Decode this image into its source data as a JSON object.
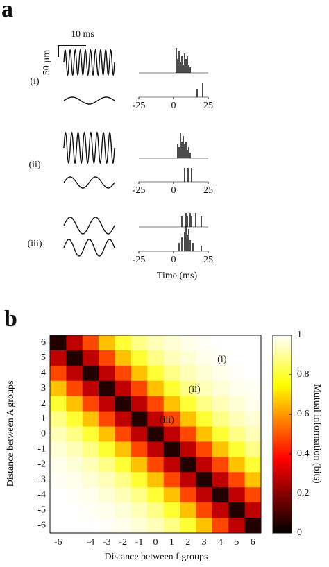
{
  "chart_data": [
    {
      "type": "spikes",
      "panel": "a",
      "time_scale": "10 ms",
      "amplitude_scale": "50 µm",
      "xlabel": "Time (ms)",
      "xlim": [
        -25,
        25
      ],
      "xticks": [
        -25,
        0,
        25
      ],
      "conditions": [
        {
          "label": "(i)",
          "top": {
            "times": [
              2,
              3,
              4,
              5,
              6,
              7,
              8,
              9,
              10,
              11,
              12
            ],
            "heights": [
              0.9,
              0.5,
              0.8,
              0.4,
              0.6,
              0.3,
              0.7,
              0.5,
              0.6,
              0.3,
              0.2
            ]
          },
          "bottom": {
            "times": [
              17,
              21
            ],
            "heights": [
              0.3,
              0.5
            ]
          }
        },
        {
          "label": "(ii)",
          "top": {
            "times": [
              3,
              4,
              5,
              6,
              7,
              8,
              9,
              10,
              11,
              12
            ],
            "heights": [
              0.5,
              0.4,
              0.9,
              0.6,
              0.8,
              0.5,
              0.6,
              0.3,
              0.4,
              0.2
            ]
          },
          "bottom": {
            "times": [
              8,
              10,
              11,
              13
            ],
            "heights": [
              0.5,
              0.5,
              0.5,
              0.5
            ]
          }
        },
        {
          "label": "(iii)",
          "top": {
            "times": [
              6,
              9,
              10,
              12,
              13,
              16,
              20
            ],
            "heights": [
              0.4,
              0.5,
              0.4,
              0.5,
              0.4,
              0.5,
              0.4
            ]
          },
          "bottom": {
            "times": [
              4,
              6,
              8,
              9,
              10,
              11,
              12,
              14,
              20
            ],
            "heights": [
              0.3,
              0.5,
              0.7,
              0.9,
              0.6,
              0.8,
              0.4,
              0.3,
              0.2
            ]
          }
        }
      ]
    },
    {
      "type": "heatmap",
      "panel": "b",
      "xlabel": "Distance between f groups",
      "ylabel": "Distance between A groups",
      "x_categories": [
        -6,
        null,
        -4,
        -3,
        -2,
        -1,
        0,
        1,
        2,
        3,
        4,
        5,
        6
      ],
      "y_categories": [
        6,
        5,
        4,
        3,
        2,
        1,
        0,
        -1,
        -2,
        -3,
        -4,
        -5,
        -6
      ],
      "annotations": [
        "(i)",
        "(ii)",
        "(iii)"
      ],
      "colorbar_label": "Mutual information (bits)",
      "clim": [
        0,
        1
      ],
      "cticks": [
        0,
        0.2,
        0.4,
        0.6,
        0.8,
        1
      ],
      "colormap": "hot",
      "values": [
        [
          0.05,
          0.28,
          0.48,
          0.66,
          0.8,
          0.88,
          0.93,
          0.96,
          0.98,
          0.99,
          1,
          1,
          1
        ],
        [
          0.28,
          0.05,
          0.28,
          0.48,
          0.66,
          0.8,
          0.88,
          0.93,
          0.96,
          0.98,
          0.99,
          1,
          1
        ],
        [
          0.48,
          0.28,
          0.05,
          0.28,
          0.48,
          0.66,
          0.8,
          0.88,
          0.93,
          0.96,
          0.98,
          0.99,
          1
        ],
        [
          0.66,
          0.48,
          0.28,
          0.05,
          0.28,
          0.48,
          0.66,
          0.8,
          0.88,
          0.93,
          0.96,
          0.98,
          0.99
        ],
        [
          0.8,
          0.66,
          0.48,
          0.28,
          0.05,
          0.28,
          0.48,
          0.66,
          0.8,
          0.88,
          0.93,
          0.96,
          0.98
        ],
        [
          0.88,
          0.8,
          0.66,
          0.48,
          0.28,
          0.05,
          0.28,
          0.48,
          0.66,
          0.8,
          0.88,
          0.93,
          0.96
        ],
        [
          0.93,
          0.88,
          0.8,
          0.66,
          0.48,
          0.28,
          0.05,
          0.28,
          0.48,
          0.66,
          0.8,
          0.88,
          0.93
        ],
        [
          0.96,
          0.93,
          0.88,
          0.8,
          0.66,
          0.48,
          0.28,
          0.05,
          0.28,
          0.48,
          0.66,
          0.8,
          0.88
        ],
        [
          0.98,
          0.96,
          0.93,
          0.88,
          0.8,
          0.66,
          0.48,
          0.28,
          0.05,
          0.28,
          0.48,
          0.66,
          0.8
        ],
        [
          0.99,
          0.98,
          0.96,
          0.93,
          0.88,
          0.8,
          0.66,
          0.48,
          0.28,
          0.05,
          0.28,
          0.48,
          0.66
        ],
        [
          1,
          0.99,
          0.98,
          0.96,
          0.93,
          0.88,
          0.8,
          0.66,
          0.48,
          0.28,
          0.05,
          0.28,
          0.48
        ],
        [
          1,
          1,
          0.99,
          0.98,
          0.96,
          0.93,
          0.88,
          0.8,
          0.66,
          0.48,
          0.28,
          0.05,
          0.28
        ],
        [
          1,
          1,
          1,
          0.99,
          0.98,
          0.96,
          0.93,
          0.88,
          0.8,
          0.66,
          0.48,
          0.28,
          0.05
        ]
      ]
    }
  ]
}
